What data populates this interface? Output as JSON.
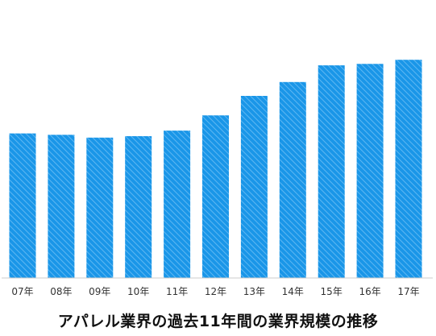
{
  "chart_data": {
    "type": "bar",
    "title": "アパレル業界の過去11年間の業界規模の推移",
    "categories": [
      "07年",
      "08年",
      "09年",
      "10年",
      "11年",
      "12年",
      "13年",
      "14年",
      "15年",
      "16年",
      "17年"
    ],
    "values": [
      52,
      51.5,
      50.5,
      51,
      53,
      58.5,
      65.5,
      70.5,
      76.5,
      77,
      78.5
    ],
    "ylim": [
      0,
      100
    ],
    "xlabel": "",
    "ylabel": "",
    "grid": false,
    "y_axis_labels_shown": false,
    "colors": {
      "bar": "#1a96e8",
      "hatch": "#5fb8f2",
      "axis": "#cccccc"
    }
  }
}
